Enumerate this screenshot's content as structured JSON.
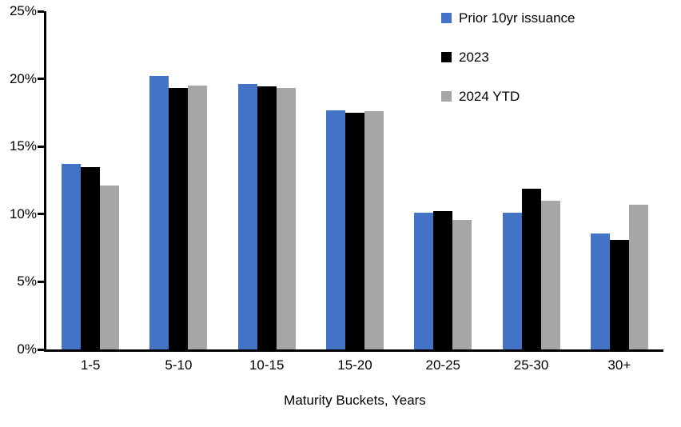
{
  "chart_data": {
    "type": "bar",
    "title": "",
    "categories": [
      "1-5",
      "5-10",
      "10-15",
      "15-20",
      "20-25",
      "25-30",
      "30+"
    ],
    "series": [
      {
        "name": "Prior 10yr issuance",
        "color": "#4472C4",
        "values": [
          13.7,
          20.2,
          19.6,
          17.7,
          10.1,
          10.1,
          8.6
        ]
      },
      {
        "name": "2023",
        "color": "#000000",
        "values": [
          13.5,
          19.3,
          19.45,
          17.5,
          10.2,
          11.9,
          8.1
        ]
      },
      {
        "name": "2024 YTD",
        "color": "#A6A6A6",
        "values": [
          12.1,
          19.5,
          19.35,
          17.6,
          9.6,
          11.0,
          10.7
        ]
      }
    ],
    "xlabel": "Maturity Buckets, Years",
    "ylabel": "",
    "ylim": [
      0,
      25
    ],
    "yticks": [
      0,
      5,
      10,
      15,
      20,
      25
    ],
    "ytick_labels": [
      "0%",
      "5%",
      "10%",
      "15%",
      "20%",
      "25%"
    ],
    "grid": false,
    "legend_position": "top-right",
    "axis_color": "#000000",
    "background": "#FFFFFF"
  }
}
